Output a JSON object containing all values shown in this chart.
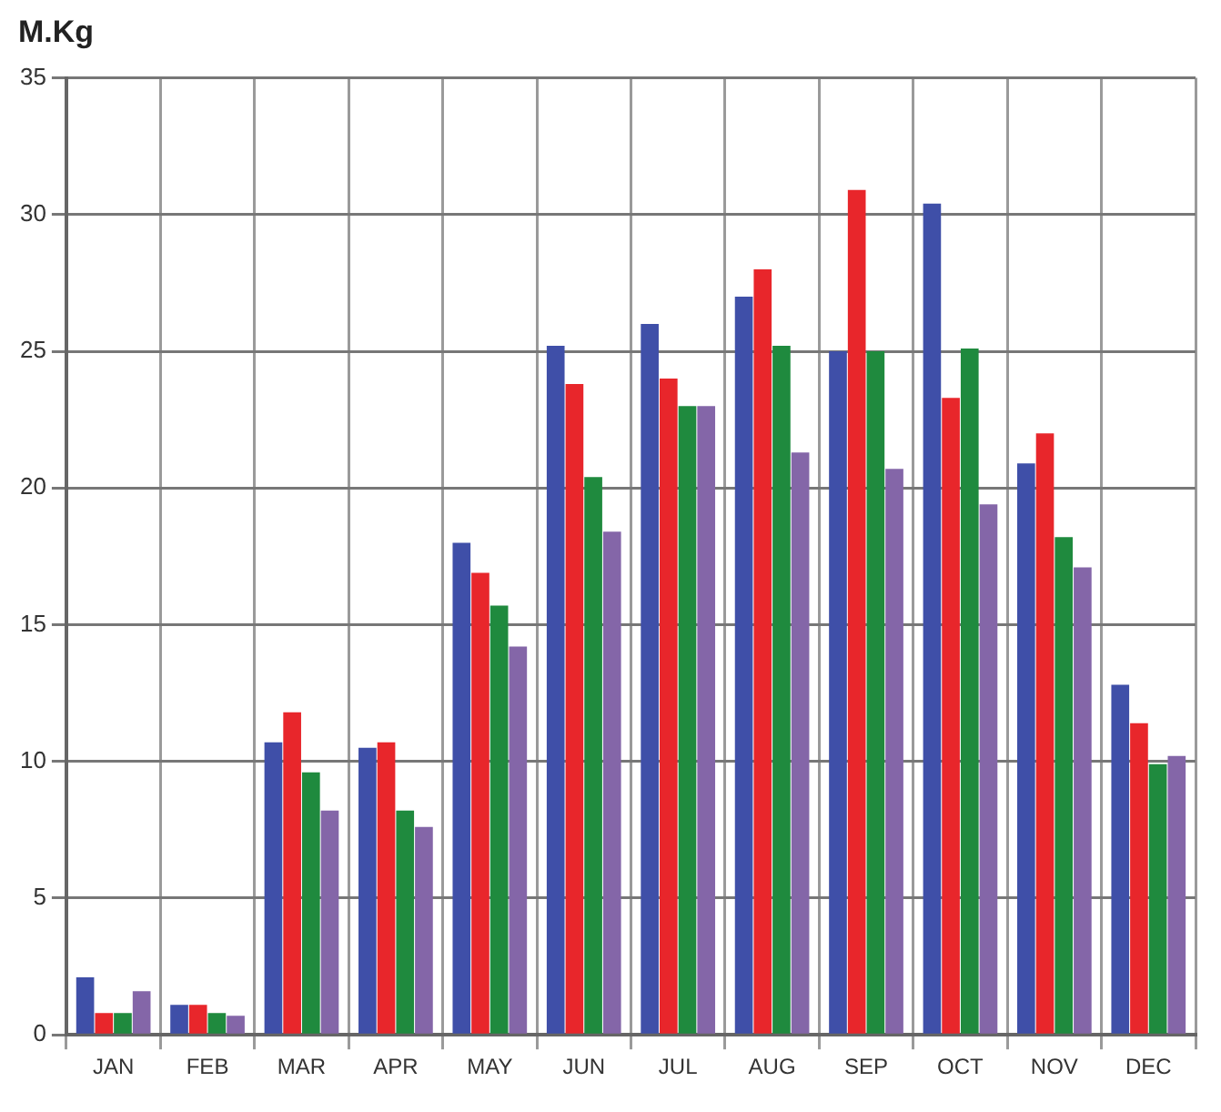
{
  "chart_data": {
    "type": "bar",
    "ylabel": "M.Kg",
    "categories": [
      "JAN",
      "FEB",
      "MAR",
      "APR",
      "MAY",
      "JUN",
      "JUL",
      "AUG",
      "SEP",
      "OCT",
      "NOV",
      "DEC"
    ],
    "series": [
      {
        "color": "#3f4fa8",
        "values": [
          2.1,
          1.1,
          10.7,
          10.5,
          18.0,
          25.2,
          26.0,
          27.0,
          25.0,
          30.4,
          20.9,
          12.8
        ]
      },
      {
        "color": "#e8262b",
        "values": [
          0.8,
          1.1,
          11.8,
          10.7,
          16.9,
          23.8,
          24.0,
          28.0,
          30.9,
          23.3,
          22.0,
          11.4
        ]
      },
      {
        "color": "#1f8a3e",
        "values": [
          0.8,
          0.8,
          9.6,
          8.2,
          15.7,
          20.4,
          23.0,
          25.2,
          25.0,
          25.1,
          18.2,
          9.9
        ]
      },
      {
        "color": "#8466a8",
        "values": [
          1.6,
          0.7,
          8.2,
          7.6,
          14.2,
          18.4,
          23.0,
          21.3,
          20.7,
          19.4,
          17.1,
          10.2
        ]
      }
    ],
    "ylim": [
      0,
      35
    ],
    "yticks": [
      0,
      5,
      10,
      15,
      20,
      25,
      30,
      35
    ],
    "grid": true,
    "legend": false
  }
}
